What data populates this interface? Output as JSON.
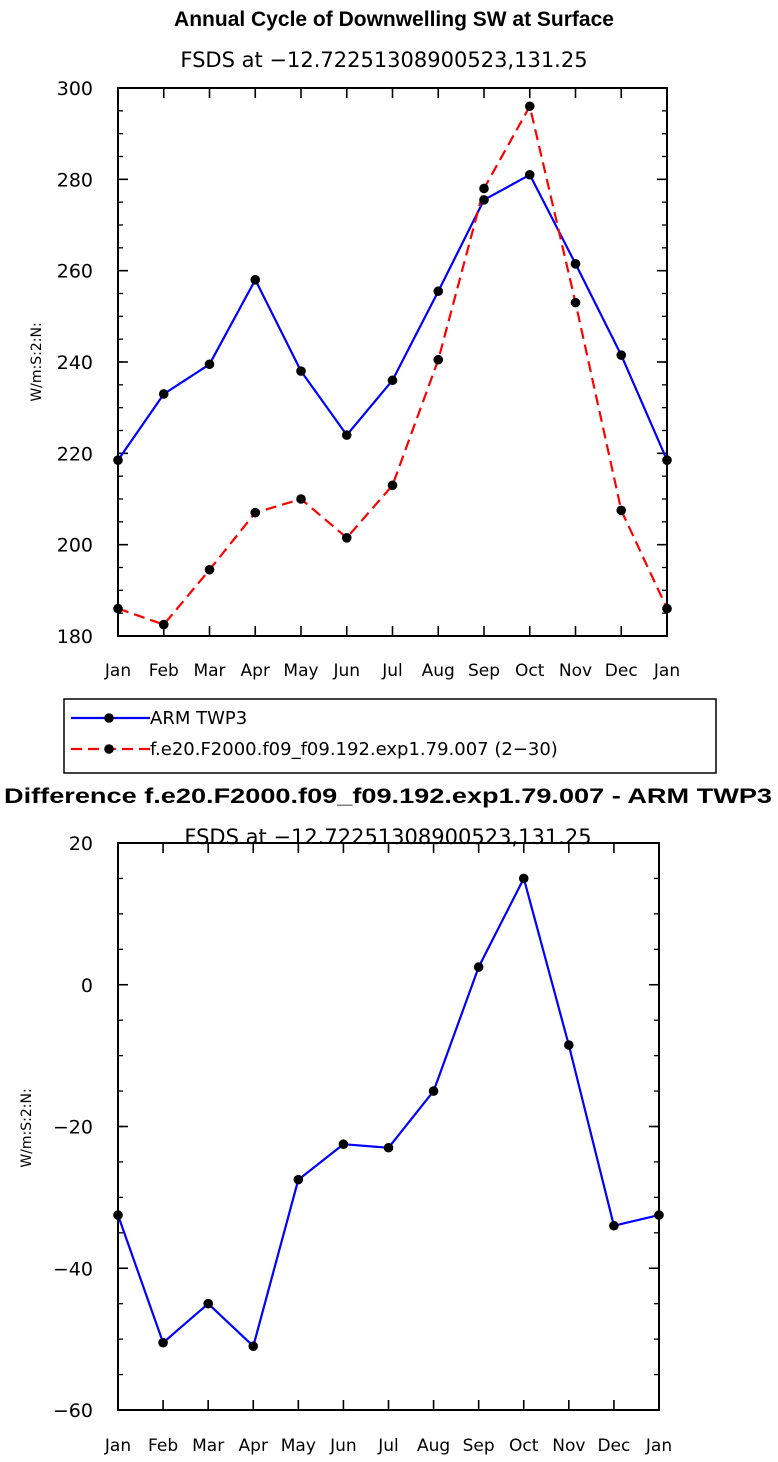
{
  "chart_data": [
    {
      "type": "line",
      "title": "Annual Cycle of Downwelling SW at Surface",
      "subtitle": "FSDS at −12.72251308900523,131.25",
      "ylabel": "W/m:S:2:N:",
      "xlabel": "",
      "categories": [
        "Jan",
        "Feb",
        "Mar",
        "Apr",
        "May",
        "Jun",
        "Jul",
        "Aug",
        "Sep",
        "Oct",
        "Nov",
        "Dec",
        "Jan"
      ],
      "ylim": [
        180,
        300
      ],
      "yticks": [
        "180",
        "200",
        "220",
        "240",
        "260",
        "280",
        "300"
      ],
      "ytick_values": [
        180,
        200,
        220,
        240,
        260,
        280,
        300
      ],
      "yminor_step": 5,
      "series": [
        {
          "name": "ARM TWP3",
          "color": "#0000ff",
          "dash": "solid",
          "values": [
            218.5,
            233.0,
            239.5,
            258.0,
            238.0,
            224.0,
            236.0,
            255.5,
            275.5,
            281.0,
            261.5,
            241.5,
            218.5
          ]
        },
        {
          "name": "f.e20.F2000.f09_f09.192.exp1.79.007 (2−30)",
          "color": "#ff0000",
          "dash": "dashed",
          "values": [
            186.0,
            182.5,
            194.5,
            207.0,
            210.0,
            201.5,
            213.0,
            240.5,
            278.0,
            296.0,
            253.0,
            207.5,
            186.0
          ]
        }
      ],
      "legend": "below"
    },
    {
      "type": "line",
      "title": "Difference f.e20.F2000.f09_f09.192.exp1.79.007 - ARM TWP3",
      "subtitle": "FSDS at −12.72251308900523,131.25",
      "ylabel": "W/m:S:2:N:",
      "xlabel": "",
      "categories": [
        "Jan",
        "Feb",
        "Mar",
        "Apr",
        "May",
        "Jun",
        "Jul",
        "Aug",
        "Sep",
        "Oct",
        "Nov",
        "Dec",
        "Jan"
      ],
      "ylim": [
        -60,
        20
      ],
      "yticks": [
        "−60",
        "−40",
        "−20",
        "0",
        "20"
      ],
      "ytick_values": [
        -60,
        -40,
        -20,
        0,
        20
      ],
      "yminor_step": 5,
      "series": [
        {
          "name": "Difference",
          "color": "#0000ff",
          "dash": "solid",
          "values": [
            -32.5,
            -50.5,
            -45.0,
            -51.0,
            -27.5,
            -22.5,
            -23.0,
            -15.0,
            2.5,
            15.0,
            -8.5,
            -34.0,
            -32.5
          ]
        }
      ]
    }
  ]
}
